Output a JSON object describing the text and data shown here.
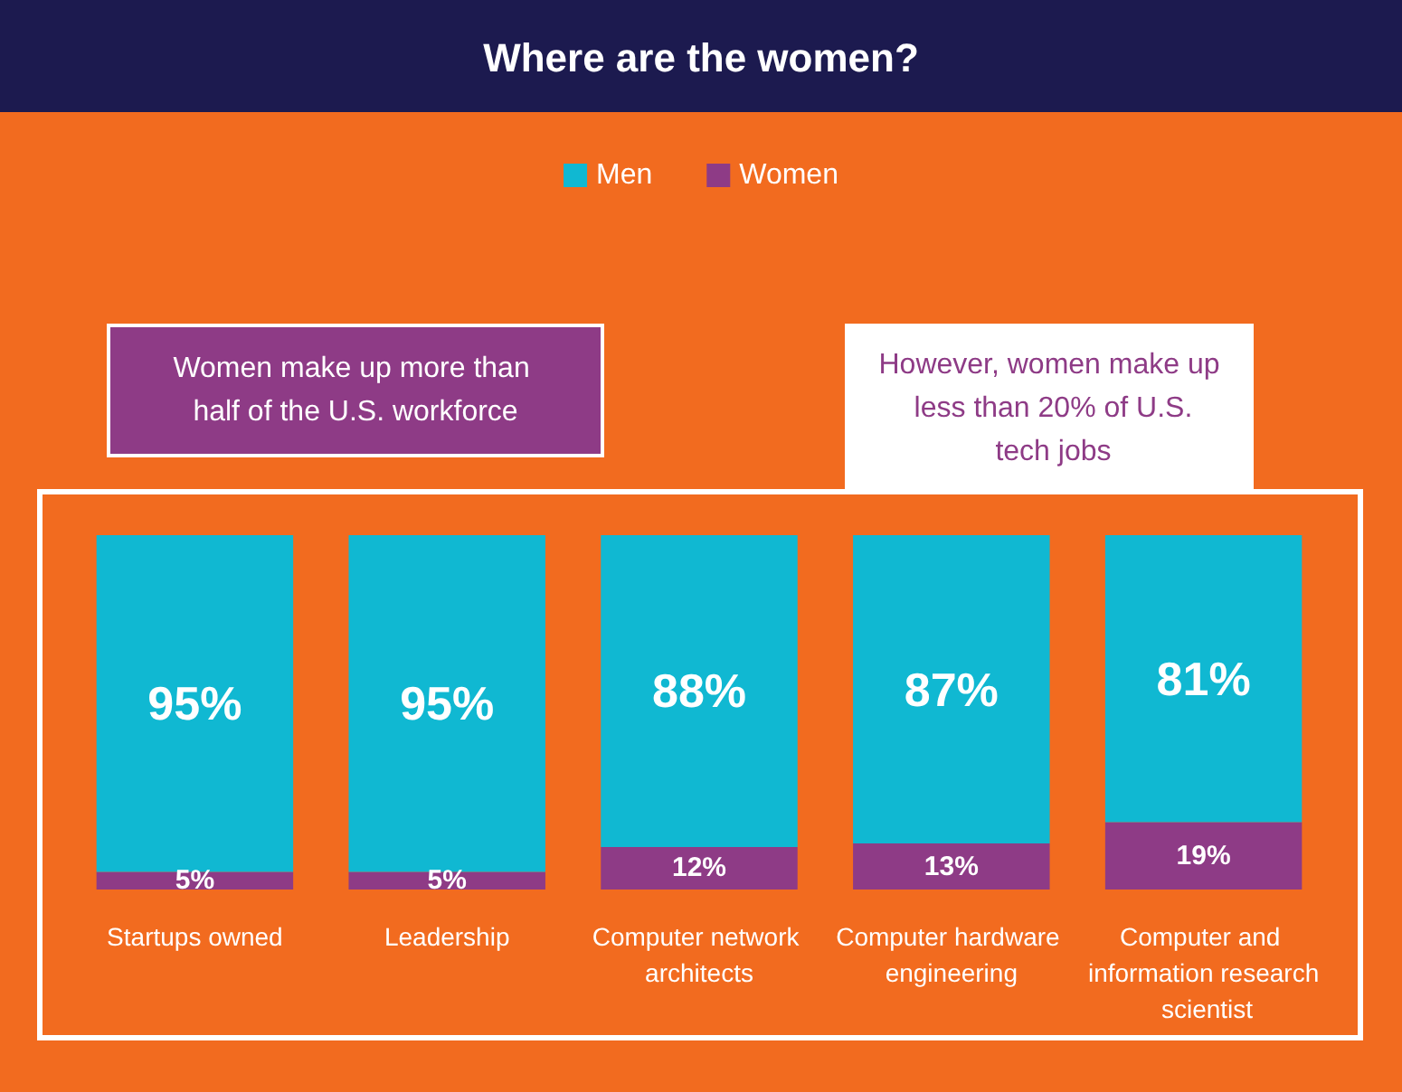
{
  "chart_data": {
    "type": "bar",
    "title": "Where are the women?",
    "categories": [
      "Startups owned",
      "Leadership",
      "Computer network architects",
      "Computer hardware engineering",
      "Computer and information research scientist"
    ],
    "stacked": true,
    "series": [
      {
        "name": "Women",
        "color": "#8e3b86",
        "values": [
          5,
          5,
          12,
          13,
          19
        ],
        "value_labels": [
          "5%",
          "5%",
          "12%",
          "13%",
          "19%"
        ]
      },
      {
        "name": "Men",
        "color": "#10b8d2",
        "values": [
          95,
          95,
          88,
          87,
          81
        ],
        "value_labels": [
          "95%",
          "95%",
          "88%",
          "87%",
          "81%"
        ]
      }
    ],
    "legend": "top",
    "annotations": [
      "Women make up more than half of the U.S. workforce",
      "However, women make up less than 20% of U.S. tech jobs"
    ]
  }
}
